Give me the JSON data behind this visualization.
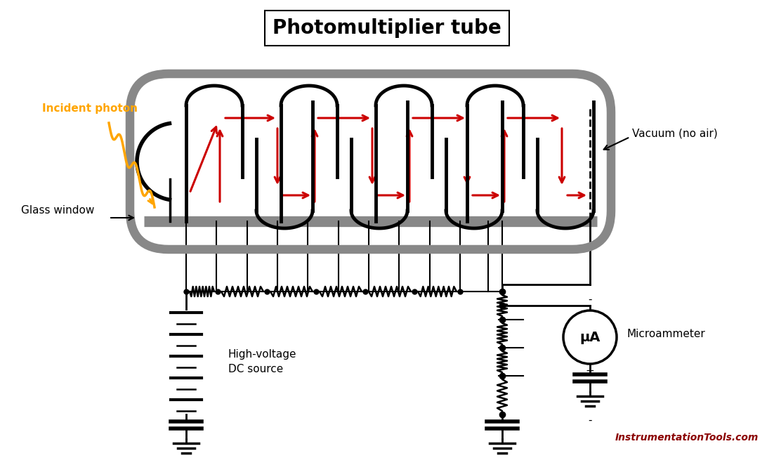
{
  "title": "Photomultiplier tube",
  "title_fontsize": 20,
  "bg_color": "white",
  "tube_color": "#888888",
  "tube_lw": 9,
  "label_incident": "Incident photon",
  "label_glass": "Glass window",
  "label_vacuum": "Vacuum (no air)",
  "label_hv_line1": "High-voltage",
  "label_hv_line2": "DC source",
  "label_uA": "μA",
  "label_meter": "Microammeter",
  "label_watermark": "InstrumentationTools.com",
  "minus_label": "-",
  "plus_label": "+",
  "photon_color": "#FFA500",
  "red": "#cc0000",
  "black": "#000000",
  "gray": "#888888",
  "darkred": "#8B0000"
}
